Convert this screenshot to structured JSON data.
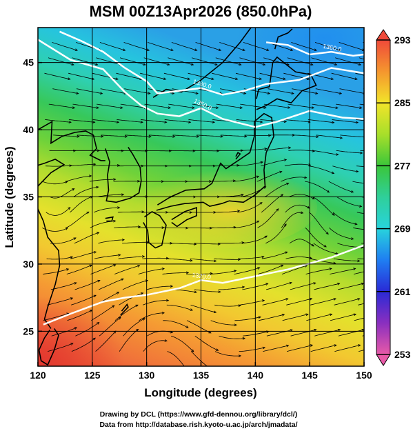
{
  "chart_data": {
    "type": "heatmap",
    "title": "MSM 00Z13Apr2026 (850.0hPa)",
    "xlabel": "Longitude (degrees)",
    "ylabel": "Latitude  (degrees)",
    "xlim": [
      120,
      150
    ],
    "ylim": [
      22.4,
      47.6
    ],
    "x_ticks": [
      "120",
      "125",
      "130",
      "135",
      "140",
      "145",
      "150"
    ],
    "x_tick_values": [
      120,
      125,
      130,
      135,
      140,
      145,
      150
    ],
    "y_ticks": [
      "25",
      "30",
      "35",
      "40",
      "45"
    ],
    "y_tick_values": [
      25,
      30,
      35,
      40,
      45
    ],
    "grid": true,
    "colorbar": {
      "placement": "right",
      "range": [
        253,
        293
      ],
      "tick_labels": [
        "293",
        "285",
        "277",
        "269",
        "261",
        "253"
      ],
      "tick_values": [
        293,
        285,
        277,
        269,
        261,
        253
      ],
      "colors": {
        "253": "#e85aa8",
        "257": "#8a2fbf",
        "261": "#2a2ad6",
        "265": "#1f7ef2",
        "269": "#28d3dc",
        "273": "#2fcf9a",
        "277": "#3bc63a",
        "281": "#a8df2a",
        "285": "#f2e42a",
        "289": "#f5962e",
        "293": "#ef4a3a"
      }
    },
    "contours": [
      {
        "label": "1320.0",
        "path": [
          [
            120.5,
            25.5
          ],
          [
            123,
            26.3
          ],
          [
            126,
            27.2
          ],
          [
            128,
            27.5
          ],
          [
            130,
            27.7
          ],
          [
            133,
            28.2
          ],
          [
            135,
            28.8
          ],
          [
            137,
            28.6
          ],
          [
            140,
            29.1
          ],
          [
            143,
            29.6
          ],
          [
            147,
            30.5
          ],
          [
            150,
            31.4
          ]
        ]
      },
      {
        "label": "1380.0",
        "path": [
          [
            122,
            47.3
          ],
          [
            124,
            46.6
          ],
          [
            126,
            45.8
          ],
          [
            128,
            44.6
          ],
          [
            130,
            43.6
          ],
          [
            131,
            42.7
          ],
          [
            133,
            42.9
          ],
          [
            135,
            43.1
          ],
          [
            137,
            42.6
          ],
          [
            139,
            42.9
          ],
          [
            141,
            43.4
          ],
          [
            144,
            43.7
          ],
          [
            147,
            44.6
          ],
          [
            150,
            44.2
          ]
        ]
      },
      {
        "label": "1360.0",
        "path": [
          [
            141,
            46.5
          ],
          [
            143,
            46.3
          ],
          [
            145,
            45.6
          ],
          [
            147,
            45.8
          ],
          [
            149,
            45.5
          ],
          [
            150,
            45.6
          ]
        ]
      },
      {
        "label": "1350.0",
        "path": [
          [
            120,
            46.7
          ],
          [
            123,
            45.2
          ],
          [
            126,
            44.5
          ],
          [
            128,
            42.8
          ],
          [
            129.5,
            41.8
          ],
          [
            131,
            41.2
          ],
          [
            133,
            41.0
          ],
          [
            135,
            41.6
          ],
          [
            137,
            40.8
          ],
          [
            140,
            40.2
          ],
          [
            142,
            40.6
          ],
          [
            145,
            41.4
          ],
          [
            148,
            40.9
          ],
          [
            150,
            40.8
          ]
        ]
      }
    ],
    "features": [
      "temperature (K) shading",
      "streamlines",
      "coastlines"
    ]
  },
  "credits": {
    "line1": "Drawing by DCL (https://www.gfd-dennou.org/library/dcl/)",
    "line2": "Data from http://database.rish.kyoto-u.ac.jp/arch/jmadata/"
  }
}
